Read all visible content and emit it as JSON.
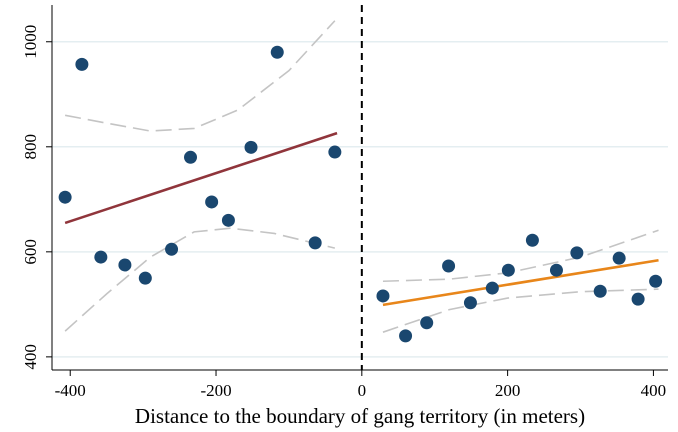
{
  "chart_data": {
    "type": "scatter",
    "x_label": "Distance to the boundary of gang territory (in meters)",
    "xlim": [
      -425,
      420
    ],
    "ylim": [
      375,
      1070
    ],
    "xticks": [
      -400,
      -200,
      0,
      200,
      400
    ],
    "yticks": [
      400,
      600,
      800,
      1000
    ],
    "grid": true,
    "cutoff": 0,
    "series": [
      {
        "type": "scatter",
        "color": "#1a476f",
        "x": [
          -407,
          -384,
          -358,
          -325,
          -297,
          -261,
          -235,
          -206,
          -183,
          -152,
          -116,
          -64,
          -37
        ],
        "values": [
          704,
          957,
          590,
          575,
          550,
          605,
          780,
          695,
          660,
          799,
          980,
          617,
          790
        ]
      },
      {
        "type": "scatter",
        "color": "#1a476f",
        "x": [
          29,
          60,
          89,
          119,
          149,
          179,
          201,
          234,
          267,
          295,
          327,
          353,
          379,
          403
        ],
        "values": [
          516,
          440,
          465,
          573,
          503,
          531,
          565,
          622,
          565,
          598,
          525,
          588,
          510,
          544
        ]
      },
      {
        "type": "line",
        "style": "solid",
        "color": "#90353b",
        "x": [
          -407,
          -34
        ],
        "values": [
          655,
          826
        ]
      },
      {
        "type": "line",
        "style": "solid",
        "color": "#e8861a",
        "x": [
          29,
          407
        ],
        "values": [
          499,
          584
        ]
      },
      {
        "type": "line",
        "style": "dashed",
        "color": "#c4c4c4",
        "x": [
          -407,
          -350,
          -290,
          -230,
          -170,
          -100,
          -37
        ],
        "values": [
          860,
          845,
          830,
          835,
          870,
          945,
          1040
        ]
      },
      {
        "type": "line",
        "style": "dashed",
        "color": "#c4c4c4",
        "x": [
          -407,
          -350,
          -290,
          -230,
          -180,
          -120,
          -37
        ],
        "values": [
          449,
          520,
          590,
          638,
          645,
          635,
          607
        ]
      },
      {
        "type": "line",
        "style": "dashed",
        "color": "#c4c4c4",
        "x": [
          29,
          120,
          200,
          300,
          407
        ],
        "values": [
          544,
          548,
          560,
          590,
          641
        ]
      },
      {
        "type": "line",
        "style": "dashed",
        "color": "#c4c4c4",
        "x": [
          29,
          120,
          200,
          300,
          407
        ],
        "values": [
          447,
          490,
          512,
          524,
          529
        ]
      }
    ]
  }
}
